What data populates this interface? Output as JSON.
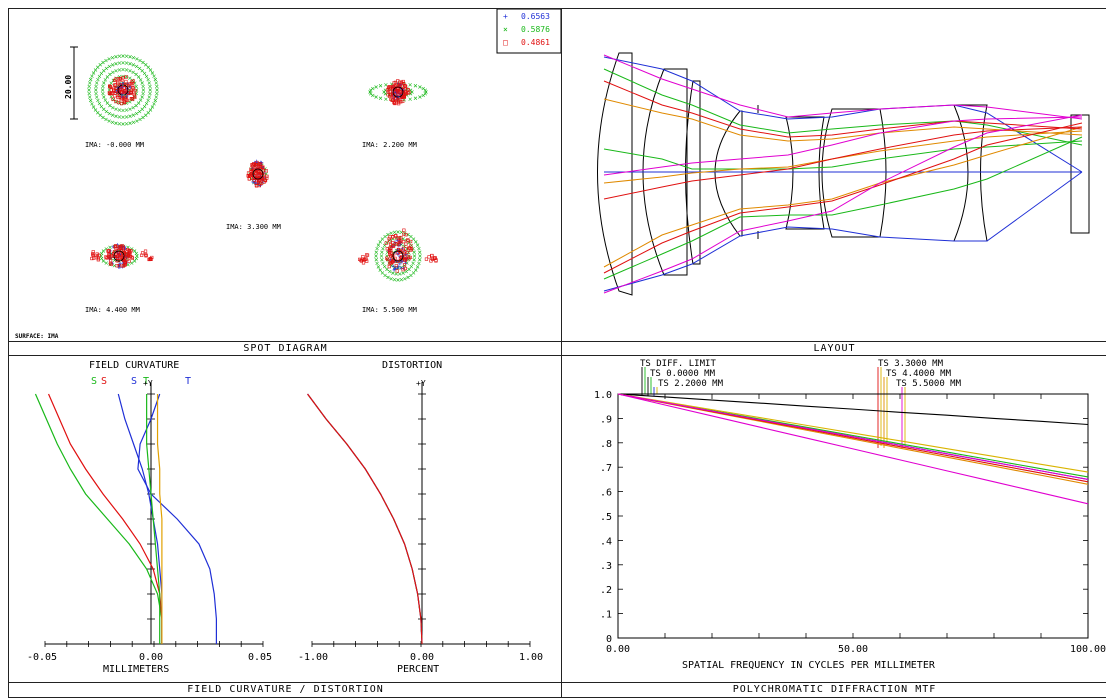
{
  "colors": {
    "blue": "#1f2fd6",
    "green": "#19b819",
    "red": "#e01010",
    "yellow": "#d9b400",
    "orange": "#e08a00",
    "magenta": "#e000d0",
    "black": "#000000"
  },
  "spot": {
    "title": "SPOT DIAGRAM",
    "surface": "SURFACE: IMA",
    "scale_label": "20.00",
    "legend": [
      {
        "symbol": "+",
        "value": "0.6563",
        "color": "#1f2fd6"
      },
      {
        "symbol": "×",
        "value": "0.5876",
        "color": "#19b819"
      },
      {
        "symbol": "□",
        "value": "0.4861",
        "color": "#e01010"
      }
    ],
    "fields": [
      {
        "label": "IMA: -0.000 MM"
      },
      {
        "label": "IMA: 2.200 MM"
      },
      {
        "label": "IMA: 3.300 MM"
      },
      {
        "label": "IMA: 4.400 MM"
      },
      {
        "label": "IMA: 5.500 MM"
      }
    ]
  },
  "layout": {
    "title": "LAYOUT"
  },
  "fcd": {
    "title": "FIELD CURVATURE / DISTORTION",
    "fc_title": "FIELD CURVATURE",
    "dist_title": "DISTORTION",
    "fc_xlabel": "MILLIMETERS",
    "dist_xlabel": "PERCENT",
    "y_label": "+Y",
    "fc_ticks": [
      "-0.05",
      "0.00",
      "0.05"
    ],
    "dist_ticks": [
      "-1.00",
      "0.00",
      "1.00"
    ],
    "st_labels": [
      {
        "text": "S",
        "color": "#19b819"
      },
      {
        "text": "S",
        "color": "#e01010"
      },
      {
        "text": "S",
        "color": "#1f2fd6"
      },
      {
        "text": "T",
        "color": "#19b819"
      },
      {
        "text": "T",
        "color": "#1f2fd6"
      }
    ]
  },
  "chart_data": [
    {
      "type": "scatter",
      "title": "SPOT DIAGRAM",
      "fields_mm": [
        0.0,
        2.2,
        3.3,
        4.4,
        5.5
      ],
      "wavelengths_um": [
        0.6563,
        0.5876,
        0.4861
      ],
      "scale_bar": 20.0
    },
    {
      "type": "line",
      "title": "FIELD CURVATURE",
      "xlabel": "MILLIMETERS",
      "xlim": [
        -0.05,
        0.05
      ],
      "y": [
        0,
        0.1,
        0.2,
        0.3,
        0.4,
        0.5,
        0.6,
        0.7,
        0.8,
        0.9,
        1.0
      ],
      "series": [
        {
          "name": "S",
          "color": "#19b819",
          "values": [
            0.005,
            0.005,
            0.003,
            -0.002,
            -0.01,
            -0.02,
            -0.03,
            -0.037,
            -0.043,
            -0.048,
            -0.053
          ]
        },
        {
          "name": "S",
          "color": "#e01010",
          "values": [
            0.005,
            0.005,
            0.004,
            0.001,
            -0.005,
            -0.013,
            -0.022,
            -0.03,
            -0.037,
            -0.042,
            -0.047
          ]
        },
        {
          "name": "S",
          "color": "#1f2fd6",
          "values": [
            0.005,
            0.005,
            0.005,
            0.004,
            0.003,
            0.001,
            -0.001,
            -0.004,
            -0.008,
            -0.012,
            -0.015
          ]
        },
        {
          "name": "T",
          "color": "#1f2fd6",
          "values": [
            0.03,
            0.03,
            0.029,
            0.027,
            0.022,
            0.012,
            0.0,
            -0.006,
            -0.005,
            0.0,
            0.004
          ]
        },
        {
          "name": "T",
          "color": "#19b819",
          "values": [
            0.004,
            0.004,
            0.004,
            0.003,
            0.002,
            0.001,
            0.0,
            -0.001,
            -0.002,
            -0.002,
            -0.002
          ]
        },
        {
          "name": "T",
          "color": "#e0a000",
          "values": [
            0.005,
            0.005,
            0.005,
            0.005,
            0.005,
            0.005,
            0.004,
            0.004,
            0.003,
            0.003,
            0.003
          ]
        }
      ]
    },
    {
      "type": "line",
      "title": "DISTORTION",
      "xlabel": "PERCENT",
      "xlim": [
        -1.0,
        1.0
      ],
      "y": [
        0,
        0.1,
        0.2,
        0.3,
        0.4,
        0.5,
        0.6,
        0.7,
        0.8,
        0.9,
        1.0
      ],
      "series": [
        {
          "color": "#1f2fd6",
          "values": [
            0.0,
            -0.01,
            -0.04,
            -0.09,
            -0.16,
            -0.26,
            -0.38,
            -0.52,
            -0.69,
            -0.88,
            -1.05
          ]
        },
        {
          "color": "#19b819",
          "values": [
            0.0,
            -0.01,
            -0.04,
            -0.09,
            -0.16,
            -0.26,
            -0.38,
            -0.52,
            -0.69,
            -0.88,
            -1.05
          ]
        },
        {
          "color": "#e01010",
          "values": [
            0.0,
            -0.01,
            -0.04,
            -0.09,
            -0.16,
            -0.26,
            -0.38,
            -0.52,
            -0.69,
            -0.88,
            -1.05
          ]
        }
      ]
    },
    {
      "type": "line",
      "title": "POLYCHROMATIC DIFFRACTION MTF",
      "xlabel": "SPATIAL FREQUENCY IN CYCLES PER MILLIMETER",
      "xlim": [
        0,
        100
      ],
      "ylim": [
        0,
        1
      ],
      "x_ticks": [
        "0.00",
        "50.00",
        "100.00"
      ],
      "y_ticks": [
        "0",
        ".1",
        ".2",
        ".3",
        ".4",
        ".5",
        ".6",
        ".7",
        ".8",
        ".9",
        "1.0"
      ],
      "legend": [
        "TS DIFF. LIMIT",
        "TS 0.0000 MM",
        "TS 2.2000 MM",
        "TS 3.3000 MM",
        "TS 4.4000 MM",
        "TS 5.5000 MM"
      ],
      "x": [
        0,
        10,
        20,
        30,
        40,
        50,
        60,
        70,
        80,
        90,
        100
      ],
      "series": [
        {
          "color": "#000000",
          "values": [
            1.0,
            0.988,
            0.975,
            0.963,
            0.95,
            0.938,
            0.925,
            0.913,
            0.9,
            0.888,
            0.875
          ]
        },
        {
          "color": "#1f2fd6",
          "values": [
            1.0,
            0.965,
            0.93,
            0.895,
            0.86,
            0.825,
            0.79,
            0.755,
            0.72,
            0.685,
            0.65
          ]
        },
        {
          "color": "#19b819",
          "values": [
            1.0,
            0.966,
            0.932,
            0.898,
            0.864,
            0.83,
            0.796,
            0.762,
            0.728,
            0.694,
            0.66
          ]
        },
        {
          "color": "#d9b400",
          "values": [
            1.0,
            0.968,
            0.936,
            0.904,
            0.872,
            0.84,
            0.808,
            0.776,
            0.744,
            0.712,
            0.68
          ]
        },
        {
          "color": "#e08a00",
          "values": [
            1.0,
            0.963,
            0.926,
            0.889,
            0.852,
            0.815,
            0.778,
            0.741,
            0.704,
            0.667,
            0.63
          ]
        },
        {
          "color": "#e01010",
          "values": [
            1.0,
            0.964,
            0.928,
            0.892,
            0.856,
            0.82,
            0.784,
            0.748,
            0.712,
            0.676,
            0.64
          ]
        },
        {
          "color": "#e000d0",
          "values": [
            1.0,
            0.965,
            0.93,
            0.895,
            0.86,
            0.825,
            0.79,
            0.755,
            0.72,
            0.685,
            0.65
          ]
        },
        {
          "color": "#e000d0",
          "values": [
            1.0,
            0.955,
            0.91,
            0.865,
            0.82,
            0.775,
            0.73,
            0.685,
            0.64,
            0.595,
            0.55
          ]
        }
      ]
    }
  ],
  "mtf": {
    "title": "POLYCHROMATIC DIFFRACTION MTF",
    "xlabel": "SPATIAL FREQUENCY IN CYCLES PER MILLIMETER",
    "legend": [
      "TS DIFF. LIMIT",
      "TS 0.0000 MM",
      "TS 2.2000 MM",
      "TS 3.3000 MM",
      "TS 4.4000 MM",
      "TS 5.5000 MM"
    ]
  }
}
